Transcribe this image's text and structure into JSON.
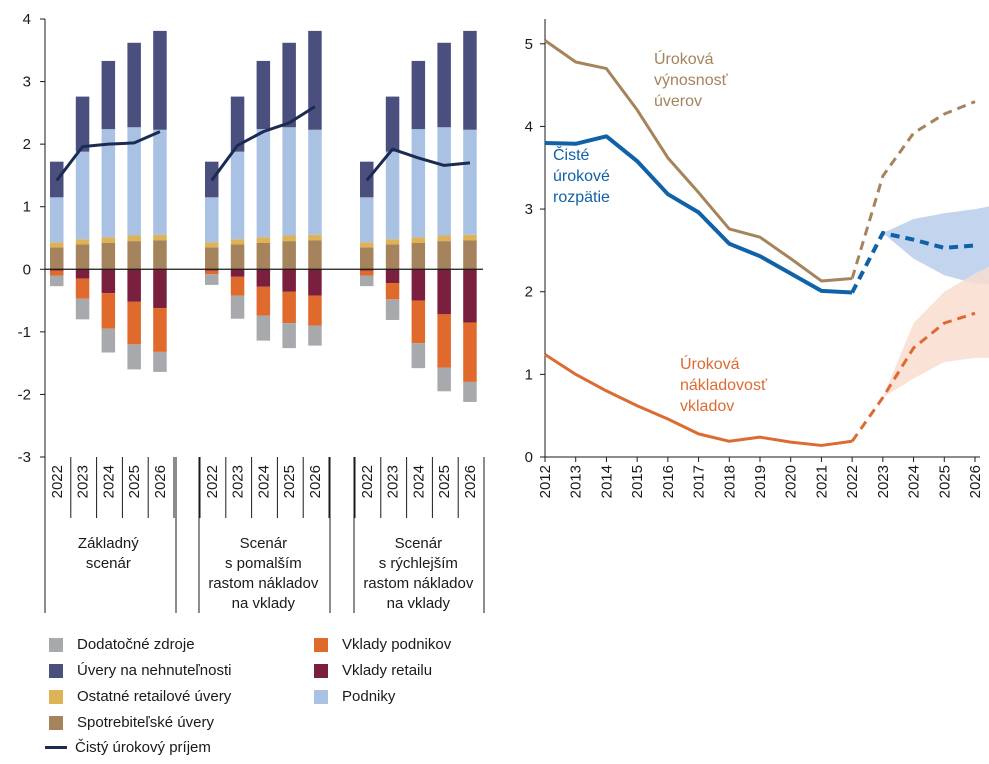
{
  "chart_data": [
    {
      "type": "bar",
      "stacked": true,
      "ylim": [
        -3,
        4
      ],
      "y_ticks": [
        "4",
        "3",
        "2",
        "1",
        "0",
        "-1",
        "-2",
        "-3"
      ],
      "grid": false,
      "legend_position": "bottom",
      "groups": [
        {
          "label_lines": [
            "Základný",
            "scenár"
          ],
          "categories": [
            "2022",
            "2023",
            "2024",
            "2025",
            "2026"
          ]
        },
        {
          "label_lines": [
            "Scenár",
            "s pomalším",
            "rastom nákladov",
            "na vklady"
          ],
          "categories": [
            "2022",
            "2023",
            "2024",
            "2025",
            "2026"
          ]
        },
        {
          "label_lines": [
            "Scenár",
            "s rýchlejším",
            "rastom nákladov",
            "na vklady"
          ],
          "categories": [
            "2022",
            "2023",
            "2024",
            "2025",
            "2026"
          ]
        }
      ],
      "positive_series": [
        {
          "name": "Spotrebiteľské úvery",
          "color": "#a5835d",
          "values": [
            [
              0.35,
              0.4,
              0.42,
              0.45,
              0.46
            ],
            [
              0.35,
              0.4,
              0.42,
              0.45,
              0.46
            ],
            [
              0.35,
              0.4,
              0.42,
              0.45,
              0.46
            ]
          ]
        },
        {
          "name": "Ostatné retailové úvery",
          "color": "#e0b256",
          "values": [
            [
              0.08,
              0.08,
              0.09,
              0.09,
              0.09
            ],
            [
              0.08,
              0.08,
              0.09,
              0.09,
              0.09
            ],
            [
              0.08,
              0.08,
              0.09,
              0.09,
              0.09
            ]
          ]
        },
        {
          "name": "Podniky",
          "color": "#a9c2e3",
          "values": [
            [
              0.72,
              1.4,
              1.73,
              1.73,
              1.68
            ],
            [
              0.72,
              1.4,
              1.73,
              1.73,
              1.68
            ],
            [
              0.72,
              1.4,
              1.73,
              1.73,
              1.68
            ]
          ]
        },
        {
          "name": "Úvery na nehnuteľnosti",
          "color": "#4a4f7e",
          "values": [
            [
              0.57,
              0.88,
              1.09,
              1.35,
              1.58
            ],
            [
              0.57,
              0.88,
              1.09,
              1.35,
              1.58
            ],
            [
              0.57,
              0.88,
              1.09,
              1.35,
              1.58
            ]
          ]
        }
      ],
      "negative_series": [
        {
          "name": "Vklady retailu",
          "color": "#7a1f3d",
          "values": [
            [
              -0.02,
              -0.15,
              -0.38,
              -0.52,
              -0.62
            ],
            [
              -0.02,
              -0.12,
              -0.28,
              -0.36,
              -0.42
            ],
            [
              -0.02,
              -0.22,
              -0.5,
              -0.72,
              -0.85
            ]
          ]
        },
        {
          "name": "Vklady podnikov",
          "color": "#e06a2c",
          "values": [
            [
              -0.08,
              -0.32,
              -0.57,
              -0.68,
              -0.7
            ],
            [
              -0.06,
              -0.3,
              -0.46,
              -0.5,
              -0.48
            ],
            [
              -0.08,
              -0.26,
              -0.68,
              -0.85,
              -0.95
            ]
          ]
        },
        {
          "name": "Dodatočné zdroje",
          "color": "#a7a9ac",
          "values": [
            [
              -0.17,
              -0.33,
              -0.38,
              -0.4,
              -0.32
            ],
            [
              -0.17,
              -0.37,
              -0.4,
              -0.4,
              -0.32
            ],
            [
              -0.17,
              -0.33,
              -0.4,
              -0.38,
              -0.32
            ]
          ]
        }
      ],
      "line_series": {
        "name": "Čistý úrokový príjem",
        "color": "#1c2b52",
        "values": [
          [
            1.42,
            1.96,
            2.0,
            2.02,
            2.2
          ],
          [
            1.42,
            1.98,
            2.2,
            2.34,
            2.6
          ],
          [
            1.42,
            1.92,
            1.78,
            1.66,
            1.7
          ]
        ]
      }
    },
    {
      "type": "line",
      "x": [
        "2012",
        "2013",
        "2014",
        "2015",
        "2016",
        "2017",
        "2018",
        "2019",
        "2020",
        "2021",
        "2022",
        "2023",
        "2024",
        "2025",
        "2026"
      ],
      "ylim": [
        0,
        5.3
      ],
      "y_ticks": [
        "5",
        "4",
        "3",
        "2",
        "1",
        "0"
      ],
      "grid": false,
      "projection_start": "2022",
      "series": [
        {
          "name": "Úroková výnosnosť úverov",
          "label_lines": [
            "Úroková",
            "výnosnosť",
            "úverov"
          ],
          "color": "#a5835d",
          "values": [
            5.04,
            4.78,
            4.7,
            4.2,
            3.62,
            3.2,
            2.76,
            2.66,
            2.4,
            2.13,
            2.16,
            3.4,
            3.92,
            4.15,
            4.3
          ]
        },
        {
          "name": "Čisté úrokové rozpätie",
          "label_lines": [
            "Čisté",
            "úrokové",
            "rozpätie"
          ],
          "color": "#0f62a8",
          "values": [
            3.8,
            3.79,
            3.88,
            3.58,
            3.18,
            2.96,
            2.58,
            2.43,
            2.22,
            2.01,
            1.99,
            2.71,
            2.63,
            2.53,
            2.56
          ],
          "band": {
            "lower": [
              2.71,
              2.4,
              2.2,
              2.1,
              2.08
            ],
            "upper": [
              2.71,
              2.88,
              2.95,
              3.0,
              3.07
            ],
            "color": "#b9cdeb"
          }
        },
        {
          "name": "Úroková nákladovosť vkladov",
          "label_lines": [
            "Úroková",
            "nákladovosť",
            "vkladov"
          ],
          "color": "#dd6b31",
          "values": [
            1.24,
            1.0,
            0.8,
            0.62,
            0.46,
            0.28,
            0.19,
            0.24,
            0.18,
            0.14,
            0.19,
            0.72,
            1.32,
            1.62,
            1.74
          ],
          "band": {
            "lower": [
              0.72,
              0.95,
              1.15,
              1.2,
              1.2
            ],
            "upper": [
              0.72,
              1.62,
              2.0,
              2.22,
              2.4
            ],
            "color": "#f9ddd0"
          }
        }
      ]
    }
  ],
  "legend": {
    "items": [
      {
        "label": "Dodatočné zdroje",
        "color": "#a7a9ac",
        "kind": "box"
      },
      {
        "label": "Úvery na nehnuteľnosti",
        "color": "#4a4f7e",
        "kind": "box"
      },
      {
        "label": "Ostatné retailové úvery",
        "color": "#e0b256",
        "kind": "box"
      },
      {
        "label": "Spotrebiteľské úvery",
        "color": "#a5835d",
        "kind": "box"
      },
      {
        "label": "Čistý úrokový príjem",
        "color": "#1c2b52",
        "kind": "line"
      },
      {
        "label": "Vklady podnikov",
        "color": "#e06a2c",
        "kind": "box"
      },
      {
        "label": "Vklady retailu",
        "color": "#7a1f3d",
        "kind": "box"
      },
      {
        "label": "Podniky",
        "color": "#a9c2e3",
        "kind": "box"
      }
    ]
  }
}
